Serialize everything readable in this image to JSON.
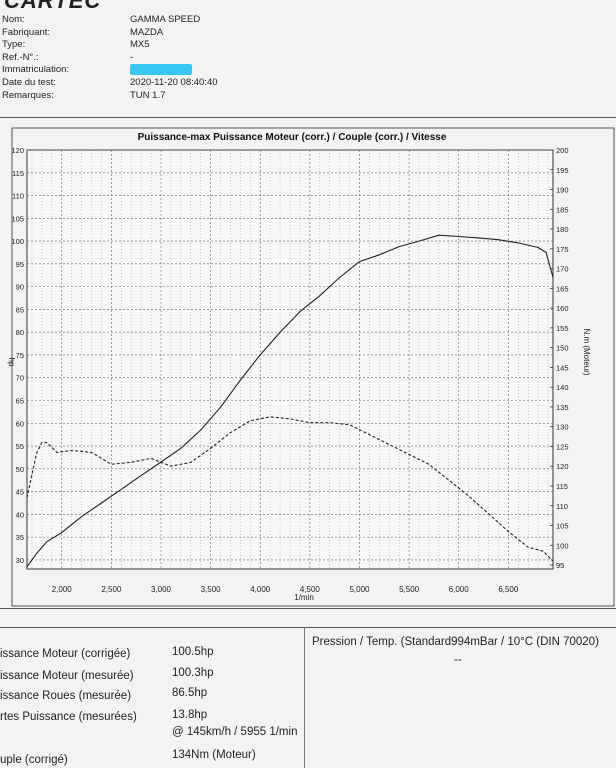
{
  "brand": "CARTEC",
  "header": {
    "rows": [
      {
        "label": "Nom:",
        "value": "GAMMA SPEED"
      },
      {
        "label": "Fabriquant:",
        "value": "MAZDA"
      },
      {
        "label": "Type:",
        "value": "MX5"
      },
      {
        "label": "Ref.-N°.:",
        "value": "-"
      },
      {
        "label": "Immatriculation:",
        "value": ""
      },
      {
        "label": "Date du test:",
        "value": "2020-11-20 08:40:40"
      },
      {
        "label": "Remarques:",
        "value": "TUN 1.7"
      }
    ]
  },
  "chart_data": {
    "type": "line",
    "title": "Puissance-max Puissance Moteur (corr.) / Couple (corr.) / Vitesse",
    "xlabel": "1/min",
    "ylabel": "hp",
    "y2label": "N.m (Moteur)",
    "xlim": [
      1650,
      6950
    ],
    "ylim": [
      28,
      120
    ],
    "y2lim": [
      94,
      200
    ],
    "x_ticks": [
      "2,000",
      "2,500",
      "3,000",
      "3,500",
      "4,000",
      "4,500",
      "5,000",
      "5,500",
      "6,000",
      "6,500"
    ],
    "y_ticks": [
      "30",
      "35",
      "40",
      "45",
      "50",
      "55",
      "60",
      "65",
      "70",
      "75",
      "80",
      "85",
      "90",
      "95",
      "100",
      "105",
      "110",
      "115",
      "120"
    ],
    "y2_ticks": [
      "95",
      "100",
      "105",
      "110",
      "115",
      "120",
      "125",
      "130",
      "135",
      "140",
      "145",
      "150",
      "155",
      "160",
      "165",
      "170",
      "175",
      "180",
      "185",
      "190",
      "195",
      "200"
    ],
    "grid": true,
    "series": [
      {
        "name": "Puissance Moteur (corr.)",
        "axis": "left",
        "style": "solid",
        "x": [
          1650,
          1750,
          1850,
          2000,
          2200,
          2400,
          2600,
          2800,
          3000,
          3200,
          3400,
          3600,
          3800,
          4000,
          4200,
          4400,
          4600,
          4800,
          5000,
          5200,
          5400,
          5600,
          5800,
          6000,
          6200,
          6400,
          6600,
          6800,
          6880,
          6950
        ],
        "values": [
          28.5,
          31.5,
          34,
          36,
          39.5,
          42.5,
          45.5,
          48.5,
          51.5,
          54.5,
          58.5,
          63.5,
          69.5,
          75,
          80,
          84.5,
          88,
          92,
          95.5,
          97,
          98.8,
          100,
          101.3,
          101,
          100.7,
          100.3,
          99.6,
          98.6,
          97.5,
          92
        ]
      },
      {
        "name": "Couple (corr.)",
        "axis": "right",
        "style": "dashed",
        "x": [
          1650,
          1700,
          1750,
          1800,
          1850,
          1950,
          2100,
          2300,
          2500,
          2700,
          2900,
          3100,
          3300,
          3500,
          3700,
          3900,
          4100,
          4300,
          4500,
          4700,
          4900,
          5100,
          5300,
          5500,
          5700,
          5900,
          6100,
          6300,
          6500,
          6700,
          6850,
          6950
        ],
        "values": [
          112,
          118,
          123.5,
          126,
          126,
          123.5,
          124,
          123.5,
          120.5,
          121,
          122,
          120,
          121,
          124.5,
          128.5,
          131.5,
          132.5,
          132,
          131,
          131,
          130.5,
          128,
          125.5,
          123,
          120.5,
          116.5,
          112.5,
          108,
          103.5,
          99.5,
          98.5,
          96
        ]
      }
    ]
  },
  "results": [
    {
      "label": "issance Moteur (corrigée)",
      "value": "100.5hp"
    },
    {
      "label": "issance Moteur (mesurée)",
      "value": "100.3hp"
    },
    {
      "label": "issance Roues (mesurée)",
      "value": "86.5hp"
    },
    {
      "label": "rtes Puissance (mesurées)",
      "value": "13.8hp"
    },
    {
      "label": "",
      "value": "@ 145km/h / 5955 1/min"
    },
    {
      "label": "uple (corrigé)",
      "value": "134Nm (Moteur)"
    }
  ],
  "conditions": {
    "text": "Pression / Temp. (Standard994mBar / 10°C   (DIN 70020)",
    "extra": "--"
  }
}
